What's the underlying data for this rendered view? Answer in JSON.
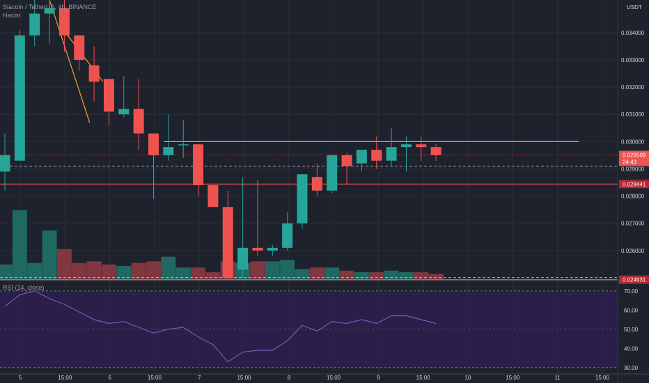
{
  "colors": {
    "background": "#1e222d",
    "grid": "#2a2e39",
    "up": "#26a69a",
    "down": "#ef5350",
    "volume_up": "#1f7168",
    "volume_down": "#8c3a42",
    "trendline": "#f5a623",
    "rsi_band": "#2c1f4d",
    "rsi_line": "#7e57c2",
    "support_line": "#ef5350",
    "current_price": "#ef5350"
  },
  "chart_data": [
    {
      "type": "candlestick",
      "title": "Siacoin / TetherUS, 4h, BINANCE",
      "volume_label": "Hacim",
      "currency": "USDT",
      "y_ticks": [
        "0.034000",
        "0.033000",
        "0.032000",
        "0.031000",
        "0.030000",
        "0.029000",
        "0.028000",
        "0.027000",
        "0.026000"
      ],
      "y_tick_values": [
        0.034,
        0.033,
        0.032,
        0.031,
        0.03,
        0.029,
        0.028,
        0.027,
        0.026
      ],
      "ylim": [
        0.02492,
        0.0352
      ],
      "x_labels": [
        "5",
        "15:00",
        "6",
        "15:00",
        "7",
        "15:00",
        "8",
        "15:00",
        "9",
        "15:00",
        "10",
        "15:00",
        "11",
        "15:00"
      ],
      "candles": [
        {
          "o": 0.0289,
          "h": 0.0303,
          "l": 0.0282,
          "c": 0.0295
        },
        {
          "o": 0.0293,
          "h": 0.0341,
          "l": 0.0293,
          "c": 0.0339
        },
        {
          "o": 0.0339,
          "h": 0.0352,
          "l": 0.0335,
          "c": 0.0347
        },
        {
          "o": 0.0347,
          "h": 0.0352,
          "l": 0.0336,
          "c": 0.0349
        },
        {
          "o": 0.0349,
          "h": 0.0352,
          "l": 0.0333,
          "c": 0.0339
        },
        {
          "o": 0.0339,
          "h": 0.0339,
          "l": 0.0326,
          "c": 0.033
        },
        {
          "o": 0.0328,
          "h": 0.0335,
          "l": 0.0315,
          "c": 0.0322
        },
        {
          "o": 0.0323,
          "h": 0.0323,
          "l": 0.0306,
          "c": 0.0311
        },
        {
          "o": 0.031,
          "h": 0.0324,
          "l": 0.0309,
          "c": 0.0312
        },
        {
          "o": 0.0312,
          "h": 0.0323,
          "l": 0.0297,
          "c": 0.0303
        },
        {
          "o": 0.0303,
          "h": 0.0303,
          "l": 0.0279,
          "c": 0.0295
        },
        {
          "o": 0.0295,
          "h": 0.031,
          "l": 0.0293,
          "c": 0.0298
        },
        {
          "o": 0.0299,
          "h": 0.0308,
          "l": 0.0294,
          "c": 0.0299
        },
        {
          "o": 0.0299,
          "h": 0.0299,
          "l": 0.028,
          "c": 0.0284
        },
        {
          "o": 0.0284,
          "h": 0.0284,
          "l": 0.0276,
          "c": 0.0276
        },
        {
          "o": 0.0276,
          "h": 0.0282,
          "l": 0.025,
          "c": 0.025
        },
        {
          "o": 0.0253,
          "h": 0.0287,
          "l": 0.025,
          "c": 0.0261
        },
        {
          "o": 0.0261,
          "h": 0.0286,
          "l": 0.0258,
          "c": 0.026
        },
        {
          "o": 0.026,
          "h": 0.0262,
          "l": 0.0258,
          "c": 0.0261
        },
        {
          "o": 0.0261,
          "h": 0.0274,
          "l": 0.026,
          "c": 0.027
        },
        {
          "o": 0.027,
          "h": 0.0288,
          "l": 0.0268,
          "c": 0.0288
        },
        {
          "o": 0.0287,
          "h": 0.0292,
          "l": 0.028,
          "c": 0.0282
        },
        {
          "o": 0.0282,
          "h": 0.0295,
          "l": 0.0281,
          "c": 0.0295
        },
        {
          "o": 0.0295,
          "h": 0.0296,
          "l": 0.0284,
          "c": 0.0291
        },
        {
          "o": 0.0292,
          "h": 0.0297,
          "l": 0.0289,
          "c": 0.0297
        },
        {
          "o": 0.0297,
          "h": 0.0302,
          "l": 0.029,
          "c": 0.0293
        },
        {
          "o": 0.0293,
          "h": 0.0305,
          "l": 0.0291,
          "c": 0.0298
        },
        {
          "o": 0.0298,
          "h": 0.0302,
          "l": 0.0289,
          "c": 0.0299
        },
        {
          "o": 0.0299,
          "h": 0.0302,
          "l": 0.0293,
          "c": 0.0298
        },
        {
          "o": 0.0298,
          "h": 0.0299,
          "l": 0.0293,
          "c": 0.0295
        }
      ],
      "volume": [
        1.0,
        4.5,
        1.1,
        3.2,
        2.0,
        1.1,
        1.2,
        1.0,
        0.9,
        1.1,
        1.2,
        1.5,
        0.8,
        0.8,
        0.5,
        1.2,
        1.1,
        1.2,
        1.2,
        1.3,
        0.7,
        0.8,
        0.8,
        0.6,
        0.5,
        0.5,
        0.6,
        0.5,
        0.5,
        0.4
      ],
      "levels": [
        {
          "label": "0.029509",
          "sublabel": "24:43",
          "price": 0.029509,
          "style": "current"
        },
        {
          "label": "0.028441",
          "price": 0.028441,
          "style": "support"
        },
        {
          "label": "0.024931",
          "price": 0.02493,
          "style": "support"
        }
      ],
      "trendlines": [
        {
          "from": [
            3.0,
            0.0352
          ],
          "to": [
            5.7,
            0.0307
          ]
        },
        {
          "from": [
            3.8,
            0.0342
          ],
          "to": [
            6.6,
            0.0322
          ]
        },
        {
          "from": [
            10.7,
            0.03
          ],
          "to": [
            38.6,
            0.03
          ]
        }
      ],
      "dotted_level": 0.0291
    },
    {
      "type": "line",
      "title": "RSI (14, close)",
      "y_ticks": [
        "70.00",
        "60.00",
        "50.00",
        "40.00",
        "30.00"
      ],
      "y_tick_values": [
        70,
        60,
        50,
        40,
        30
      ],
      "ylim": [
        27,
        75
      ],
      "band": [
        30,
        70
      ],
      "values": [
        62,
        68,
        70,
        66,
        63,
        59,
        55,
        53,
        54,
        51,
        48,
        50,
        51,
        46,
        42,
        33,
        38,
        39,
        39,
        44,
        52,
        49,
        54,
        53,
        55,
        53,
        57,
        57,
        55,
        53
      ]
    }
  ]
}
